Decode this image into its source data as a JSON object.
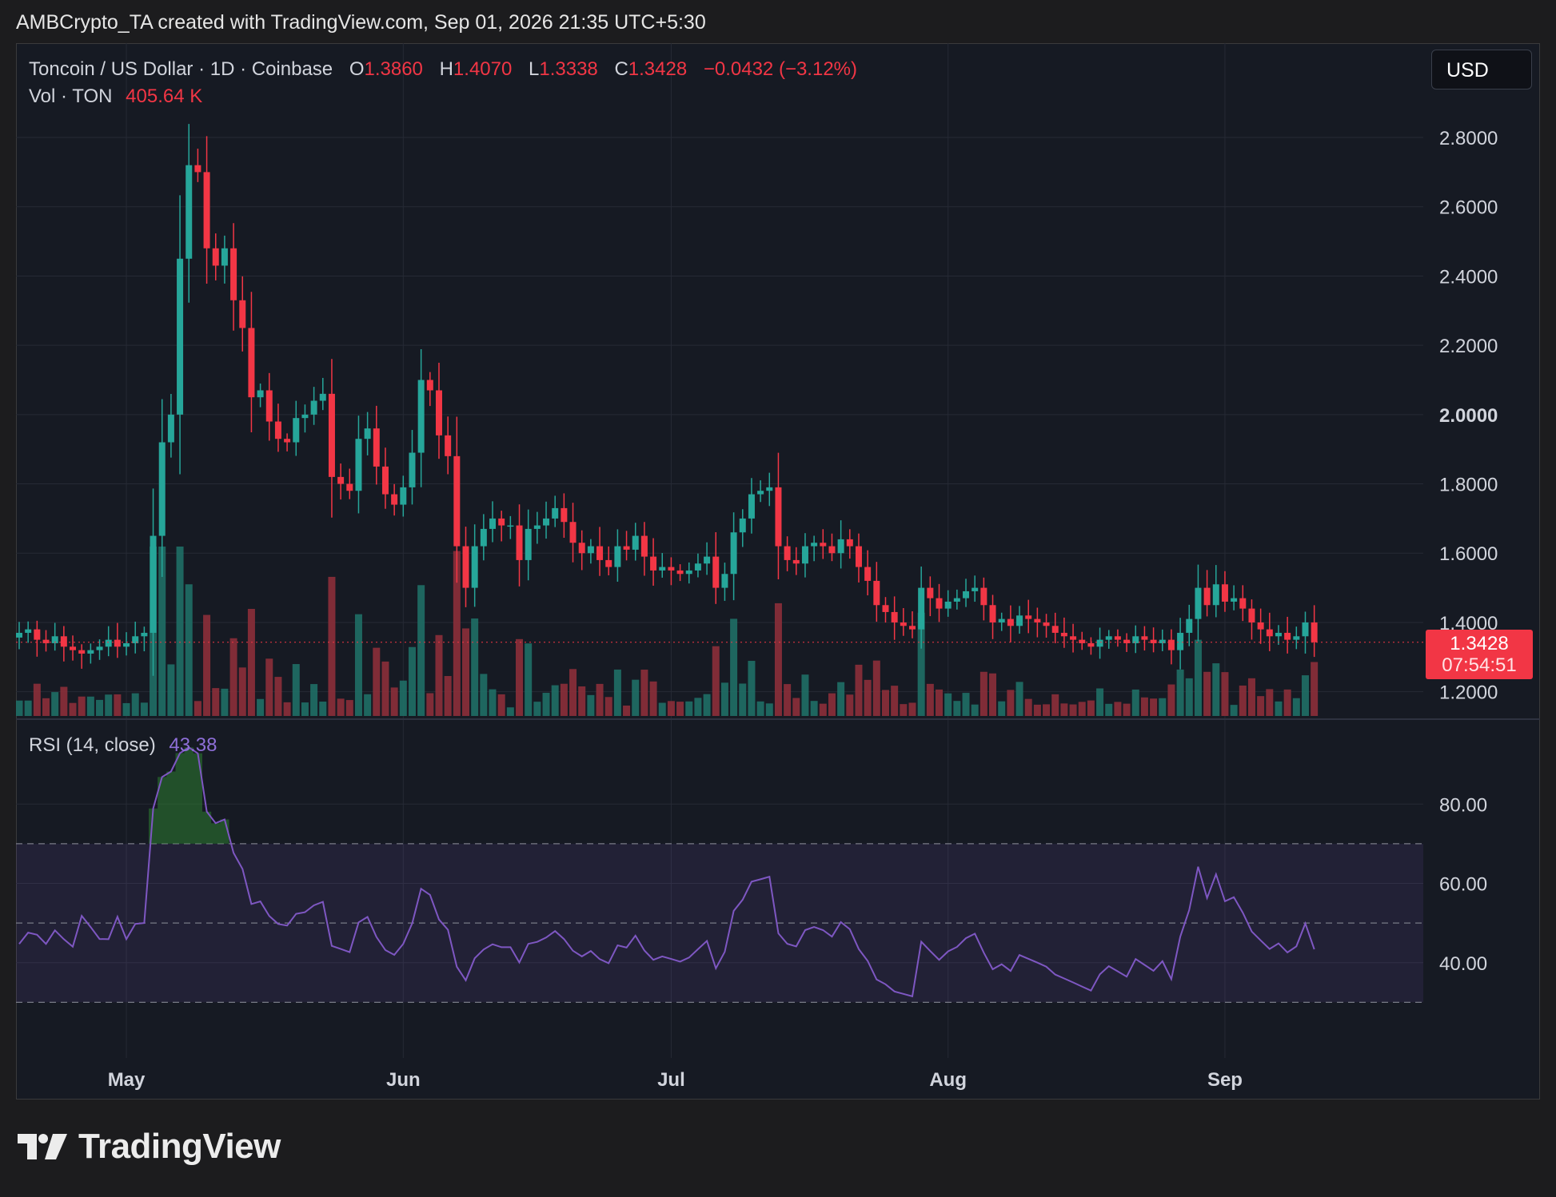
{
  "header": {
    "credit": "AMBCrypto_TA created with TradingView.com, Sep 01, 2026 21:35 UTC+5:30"
  },
  "legend": {
    "symbol": "Toncoin / US Dollar · 1D · Coinbase",
    "open_label": "O",
    "open": "1.3860",
    "high_label": "H",
    "high": "1.4070",
    "low_label": "L",
    "low": "1.3338",
    "close_label": "C",
    "close": "1.3428",
    "change": "−0.0432 (−3.12%)",
    "vol_label": "Vol · TON",
    "vol_value": "405.64 K",
    "rsi_label": "RSI (14, close)",
    "rsi_value": "43.38"
  },
  "currency_button": "USD",
  "last_price": {
    "price": "1.3428",
    "countdown": "07:54:51"
  },
  "brand": {
    "name": "TradingView"
  },
  "colors": {
    "up": "#26a69a",
    "down": "#f23645",
    "rsi_line": "#7e57c2",
    "background": "#161a23"
  },
  "chart_data": [
    {
      "type": "candlestick",
      "title": "Toncoin / US Dollar · 1D · Coinbase",
      "x_ticks": [
        "May",
        "Jun",
        "Jul",
        "Aug",
        "Sep"
      ],
      "y_ticks": [
        "2.8000",
        "2.6000",
        "2.4000",
        "2.2000",
        "2.0000",
        "1.8000",
        "1.6000",
        "1.4000",
        "1.2000"
      ],
      "ylim": [
        1.13,
        2.98
      ],
      "start_date": "2026-04-19",
      "close": [
        1.37,
        1.38,
        1.35,
        1.34,
        1.36,
        1.33,
        1.32,
        1.31,
        1.32,
        1.33,
        1.35,
        1.33,
        1.34,
        1.36,
        1.37,
        1.65,
        1.92,
        2.0,
        2.45,
        2.72,
        2.7,
        2.48,
        2.43,
        2.48,
        2.33,
        2.25,
        2.05,
        2.07,
        1.98,
        1.93,
        1.92,
        1.99,
        2.0,
        2.04,
        2.06,
        1.82,
        1.8,
        1.78,
        1.93,
        1.96,
        1.85,
        1.77,
        1.74,
        1.79,
        1.89,
        2.1,
        2.07,
        1.94,
        1.88,
        1.62,
        1.5,
        1.62,
        1.67,
        1.7,
        1.68,
        1.68,
        1.58,
        1.67,
        1.68,
        1.7,
        1.73,
        1.69,
        1.63,
        1.6,
        1.62,
        1.58,
        1.56,
        1.62,
        1.61,
        1.65,
        1.59,
        1.55,
        1.56,
        1.55,
        1.54,
        1.55,
        1.57,
        1.59,
        1.5,
        1.54,
        1.66,
        1.7,
        1.77,
        1.78,
        1.79,
        1.62,
        1.58,
        1.57,
        1.62,
        1.63,
        1.62,
        1.6,
        1.64,
        1.62,
        1.56,
        1.52,
        1.45,
        1.43,
        1.4,
        1.39,
        1.38,
        1.5,
        1.47,
        1.44,
        1.46,
        1.47,
        1.49,
        1.5,
        1.45,
        1.4,
        1.41,
        1.39,
        1.42,
        1.41,
        1.4,
        1.39,
        1.37,
        1.36,
        1.35,
        1.34,
        1.33,
        1.35,
        1.36,
        1.35,
        1.34,
        1.36,
        1.35,
        1.34,
        1.35,
        1.32,
        1.37,
        1.41,
        1.5,
        1.45,
        1.51,
        1.46,
        1.47,
        1.44,
        1.4,
        1.38,
        1.36,
        1.37,
        1.35,
        1.36,
        1.4,
        1.3428
      ],
      "volume_label": "Vol · TON",
      "volume_last": "405.64 K"
    },
    {
      "type": "line",
      "title": "RSI (14, close)",
      "last_value": 43.38,
      "y_ticks": [
        "80.00",
        "60.00",
        "40.00"
      ],
      "ylim": [
        20.4,
        98.6
      ],
      "bands": [
        30,
        50,
        70
      ]
    }
  ]
}
